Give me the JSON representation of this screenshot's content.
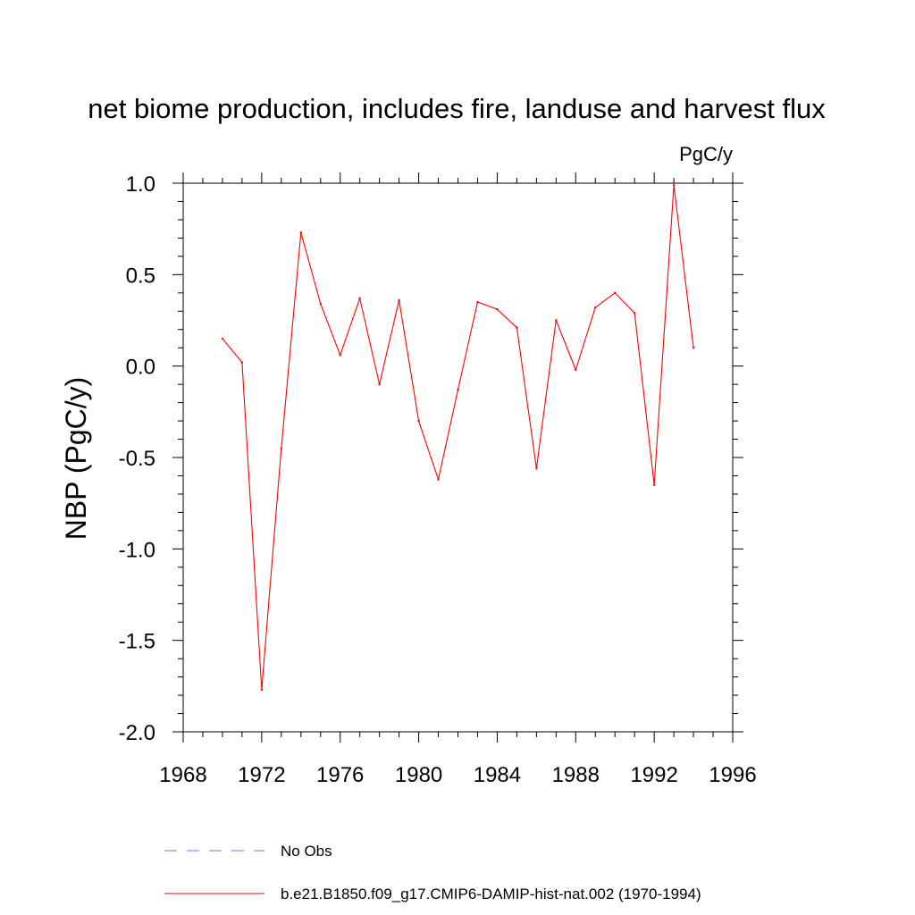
{
  "chart_data": {
    "type": "line",
    "title": "net biome production, includes fire, landuse and harvest flux",
    "units_label": "PgC/y",
    "xlabel": "",
    "ylabel": "NBP  (PgC/y)",
    "xlim": [
      1968,
      1996
    ],
    "ylim": [
      -2.0,
      1.0
    ],
    "x_ticks": [
      "1968",
      "1972",
      "1976",
      "1980",
      "1984",
      "1988",
      "1992",
      "1996"
    ],
    "y_ticks": [
      "1.0",
      "0.5",
      "0.0",
      "-0.5",
      "-1.0",
      "-1.5",
      "-2.0"
    ],
    "grid": false,
    "legend_position": "bottom",
    "series": [
      {
        "name": "b.e21.B1850.f09_g17.CMIP6-DAMIP-hist-nat.002 (1970-1994)",
        "color": "#ff0000",
        "style": "solid",
        "x": [
          1970,
          1971,
          1972,
          1973,
          1974,
          1975,
          1976,
          1977,
          1978,
          1979,
          1980,
          1981,
          1982,
          1983,
          1984,
          1985,
          1986,
          1987,
          1988,
          1989,
          1990,
          1991,
          1992,
          1993,
          1994
        ],
        "y": [
          0.15,
          0.02,
          -1.77,
          -0.45,
          0.73,
          0.34,
          0.06,
          0.37,
          -0.1,
          0.36,
          -0.3,
          -0.62,
          -0.13,
          0.35,
          0.31,
          0.21,
          -0.56,
          0.25,
          -0.02,
          0.32,
          0.4,
          0.29,
          -0.65,
          0.99,
          0.1
        ]
      }
    ],
    "legend": [
      {
        "label": "No Obs",
        "color": "#7b7bc8",
        "style": "dashed"
      },
      {
        "label": "b.e21.B1850.f09_g17.CMIP6-DAMIP-hist-nat.002 (1970-1994)",
        "color": "#ff0000",
        "style": "solid"
      }
    ]
  }
}
